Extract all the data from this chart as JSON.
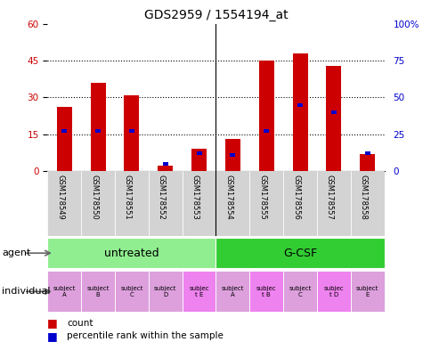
{
  "title": "GDS2959 / 1554194_at",
  "categories": [
    "GSM178549",
    "GSM178550",
    "GSM178551",
    "GSM178552",
    "GSM178553",
    "GSM178554",
    "GSM178555",
    "GSM178556",
    "GSM178557",
    "GSM178558"
  ],
  "red_values": [
    26,
    36,
    31,
    2,
    9,
    13,
    45,
    48,
    43,
    7
  ],
  "blue_values": [
    27,
    27,
    27,
    5,
    12,
    11,
    27,
    45,
    40,
    12
  ],
  "ylim_left": [
    0,
    60
  ],
  "ylim_right": [
    0,
    100
  ],
  "yticks_left": [
    0,
    15,
    30,
    45,
    60
  ],
  "yticks_right": [
    0,
    25,
    50,
    75,
    100
  ],
  "ytick_labels_left": [
    "0",
    "15",
    "30",
    "45",
    "60"
  ],
  "ytick_labels_right": [
    "0",
    "25",
    "50",
    "75",
    "100%"
  ],
  "individual_labels": [
    "subject\nA",
    "subject\nB",
    "subject\nC",
    "subject\nD",
    "subjec\nt E",
    "subject\nA",
    "subjec\nt B",
    "subject\nC",
    "subjec\nt D",
    "subject\nE"
  ],
  "individual_colors": [
    "#DDA0DD",
    "#DDA0DD",
    "#DDA0DD",
    "#DDA0DD",
    "#EE82EE",
    "#DDA0DD",
    "#EE82EE",
    "#DDA0DD",
    "#EE82EE",
    "#DDA0DD"
  ],
  "agent_untreated_color": "#90EE90",
  "agent_gcsf_color": "#32CD32",
  "red_color": "#CC0000",
  "blue_color": "#0000CC",
  "bar_width": 0.45,
  "label_color_left": "#CC0000",
  "label_color_right": "#0000CC",
  "xlabel_bg": "#D3D3D3"
}
